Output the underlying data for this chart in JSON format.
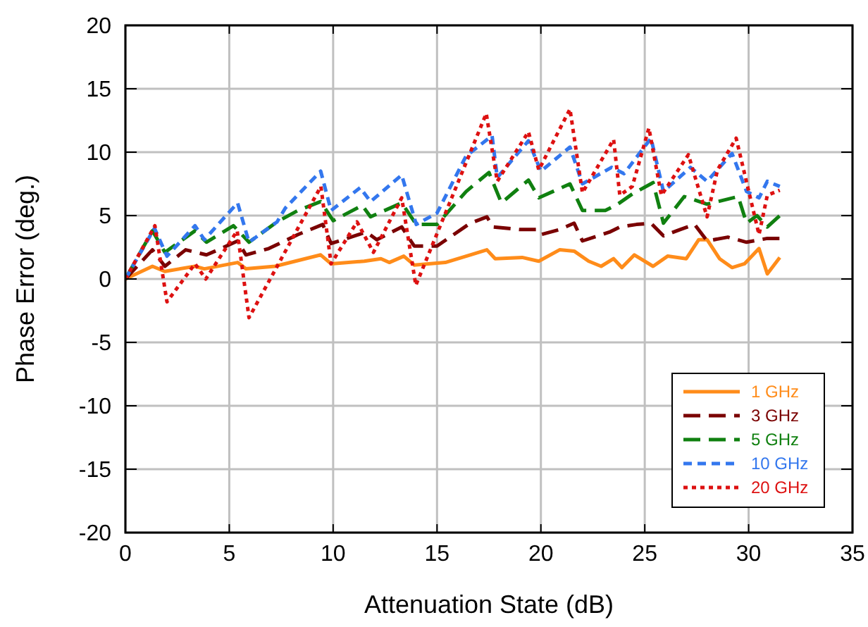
{
  "chart_data": {
    "type": "line",
    "xlabel": "Attenuation State (dB)",
    "ylabel": "Phase Error (deg.)",
    "xlim": [
      0,
      35
    ],
    "ylim": [
      -20,
      20
    ],
    "xticks": [
      0,
      5,
      10,
      15,
      20,
      25,
      30,
      35
    ],
    "yticks": [
      -20,
      -15,
      -10,
      -5,
      0,
      5,
      10,
      15,
      20
    ],
    "grid": true,
    "legend": "bottom right",
    "series": [
      {
        "name": "1 GHz",
        "color": "#ff8c1a",
        "line_style": "solid",
        "x": [
          0,
          1.3,
          1.9,
          3.35,
          3.8,
          5.4,
          5.8,
          7.2,
          9.4,
          9.9,
          11.5,
          12.3,
          12.7,
          13.4,
          13.9,
          15.4,
          16.6,
          17.4,
          17.8,
          19.1,
          19.9,
          20.9,
          21.6,
          22.3,
          22.9,
          23.5,
          23.9,
          24.5,
          25.4,
          26.1,
          27,
          27.6,
          28,
          28.6,
          29.2,
          29.8,
          30.5,
          30.9,
          31.5
        ],
        "values": [
          0,
          1,
          0.6,
          1,
          0.8,
          1.3,
          0.8,
          1,
          1.9,
          1.2,
          1.4,
          1.6,
          1.3,
          1.8,
          1.1,
          1.3,
          1.9,
          2.3,
          1.6,
          1.7,
          1.4,
          2.3,
          2.2,
          1.4,
          1,
          1.6,
          0.9,
          1.9,
          1,
          1.8,
          1.6,
          3.1,
          3.1,
          1.6,
          0.9,
          1.2,
          2.4,
          0.4,
          1.7
        ]
      },
      {
        "name": "3 GHz",
        "color": "#7a0000",
        "line_style": "dashed",
        "x": [
          0,
          1.3,
          1.9,
          2.9,
          3.9,
          4.6,
          5.4,
          5.8,
          6.9,
          8.3,
          9.5,
          9.9,
          11.6,
          12.1,
          13.3,
          13.9,
          15,
          16.6,
          17.4,
          17.7,
          19,
          19.8,
          20,
          20.9,
          21.6,
          22,
          23.3,
          23.8,
          24.6,
          25.3,
          25.9,
          26.7,
          27.4,
          28,
          29,
          29.9,
          30.9,
          31.5
        ],
        "values": [
          0,
          2.3,
          1,
          2.3,
          1.9,
          2.4,
          3,
          1.9,
          2.4,
          3.5,
          4.3,
          2.8,
          3.7,
          3.1,
          4.1,
          2.6,
          2.6,
          4.4,
          4.9,
          4.1,
          3.9,
          3.9,
          3.5,
          3.9,
          4.4,
          3,
          3.7,
          4.1,
          4.3,
          4.4,
          3.4,
          3.9,
          4.3,
          3,
          3.3,
          2.9,
          3.2,
          3.2
        ]
      },
      {
        "name": "5 GHz",
        "color": "#108010",
        "line_style": "dashed",
        "x": [
          0,
          1.3,
          1.9,
          3.35,
          3.9,
          5.2,
          5.95,
          7.3,
          8.3,
          9.4,
          10,
          11.4,
          11.8,
          13.3,
          14,
          15,
          16.4,
          17.5,
          18.1,
          19.4,
          19.9,
          21.4,
          22,
          23.1,
          23.7,
          24.4,
          25.4,
          25.9,
          26.9,
          28,
          28.5,
          29.5,
          29.9,
          30.4,
          30.9,
          31.5
        ],
        "values": [
          0,
          3.8,
          2.1,
          3.8,
          2.9,
          4.2,
          2.9,
          4.5,
          5.4,
          6.1,
          4.6,
          5.8,
          4.9,
          6,
          4.3,
          4.3,
          6.9,
          8.4,
          6,
          7.8,
          6.4,
          7.5,
          5.4,
          5.4,
          5.9,
          6.7,
          7.6,
          4.4,
          6.5,
          5.9,
          6.1,
          6.5,
          4.4,
          5,
          4.1,
          5
        ]
      },
      {
        "name": "10 GHz",
        "color": "#3377ee",
        "line_style": "short-dashed",
        "x": [
          0,
          1.4,
          2,
          3.35,
          3.8,
          5.4,
          5.95,
          7.3,
          7.7,
          9.4,
          9.9,
          11.3,
          11.8,
          13.3,
          14,
          15,
          16.4,
          17.65,
          17.9,
          19.4,
          20,
          21.4,
          22,
          23.4,
          24,
          25.3,
          25.9,
          27.2,
          28,
          29.2,
          29.9,
          30.5,
          30.9,
          31.5
        ],
        "values": [
          0,
          4,
          1.8,
          4.2,
          3.1,
          6,
          2.9,
          4.5,
          5.6,
          8.5,
          5.4,
          7.2,
          6.1,
          8.2,
          4.3,
          5.2,
          9.7,
          11.3,
          8,
          10.9,
          8.5,
          10.4,
          7.5,
          8.8,
          8.3,
          11.1,
          6.9,
          8.8,
          7.7,
          9.9,
          6.9,
          6.4,
          7.7,
          7.3
        ]
      },
      {
        "name": "20 GHz",
        "color": "#dd1111",
        "line_style": "dotted",
        "x": [
          0,
          1.42,
          2,
          3.35,
          3.87,
          5.38,
          5.95,
          9.41,
          9.9,
          11.15,
          11.94,
          13.3,
          13.98,
          17.37,
          17.9,
          19.4,
          19.9,
          21.4,
          22,
          23.5,
          23.8,
          24.4,
          25.2,
          25.8,
          27.1,
          28,
          28.5,
          29.4,
          30.5,
          30.9,
          31.5
        ],
        "values": [
          0,
          4.2,
          -1.8,
          1.2,
          0,
          3.8,
          -3.05,
          7.3,
          1.2,
          4.5,
          2.1,
          6.4,
          -0.5,
          13.05,
          7.7,
          11.6,
          8.6,
          13.4,
          6.8,
          11,
          6.6,
          7.3,
          11.9,
          6.6,
          9.8,
          4.9,
          8.6,
          11.1,
          3.5,
          6.6,
          7
        ]
      }
    ]
  }
}
